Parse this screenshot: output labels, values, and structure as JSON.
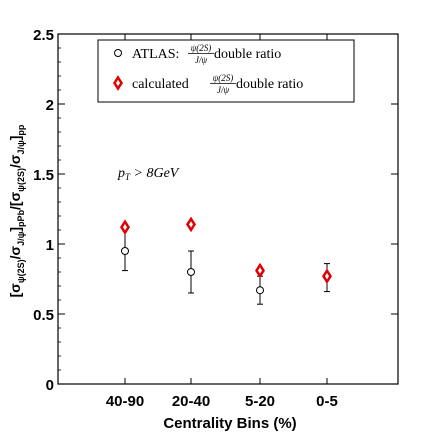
{
  "chart_data": {
    "type": "scatter",
    "xlabel": "Centrality Bins (%)",
    "ylabel": "[σψ(2S)/σJ/ψ]pPb/[σψ(2S)/σJ/ψ]pp",
    "ylabel_parts": {
      "open": "[σ",
      "sub1": "ψ(2S)",
      "mid1": "/σ",
      "sub2": "J/ψ",
      "close1": "]",
      "sub3": "pPb",
      "mid2": "/[σ",
      "sub4": "ψ(2S)",
      "mid3": "/σ",
      "sub5": "J/ψ",
      "close2": "]",
      "sub6": "pp"
    },
    "categories": [
      "40-90",
      "20-40",
      "5-20",
      "0-5"
    ],
    "ylim": [
      0,
      2.5
    ],
    "yticks": [
      {
        "value": 0,
        "label": "0"
      },
      {
        "value": 0.5,
        "label": "0.5"
      },
      {
        "value": 1,
        "label": "1"
      },
      {
        "value": 1.5,
        "label": "1.5"
      },
      {
        "value": 2,
        "label": "2"
      },
      {
        "value": 2.5,
        "label": "2.5"
      }
    ],
    "annotation": "pT > 8GeV",
    "annotation_parts": {
      "p": "p",
      "sub": "T",
      "rest": " > 8GeV"
    },
    "legend": {
      "placement": "top",
      "entries": [
        {
          "marker": "○",
          "prefix": "ATLAS:",
          "num": "ψ(2S)",
          "den": "J/ψ",
          "suffix": " double ratio"
        },
        {
          "marker": "◆",
          "prefix": "calculated ",
          "num": "ψ(2S)",
          "den": "J/ψ",
          "suffix": " double ratio"
        }
      ]
    },
    "series": [
      {
        "name": "ATLAS: ψ(2S)/J/ψ double ratio",
        "marker": "open-circle",
        "color": "#000000",
        "values": [
          0.95,
          0.8,
          0.67,
          0.77
        ],
        "err_low": [
          0.14,
          0.15,
          0.1,
          0.11
        ],
        "err_high": [
          0.16,
          0.15,
          0.1,
          0.09
        ]
      },
      {
        "name": "calculated ψ(2S)/J/ψ double ratio",
        "marker": "open-diamond",
        "color": "#e00000",
        "values": [
          1.12,
          1.14,
          0.81,
          0.77
        ]
      }
    ],
    "grid": false
  }
}
